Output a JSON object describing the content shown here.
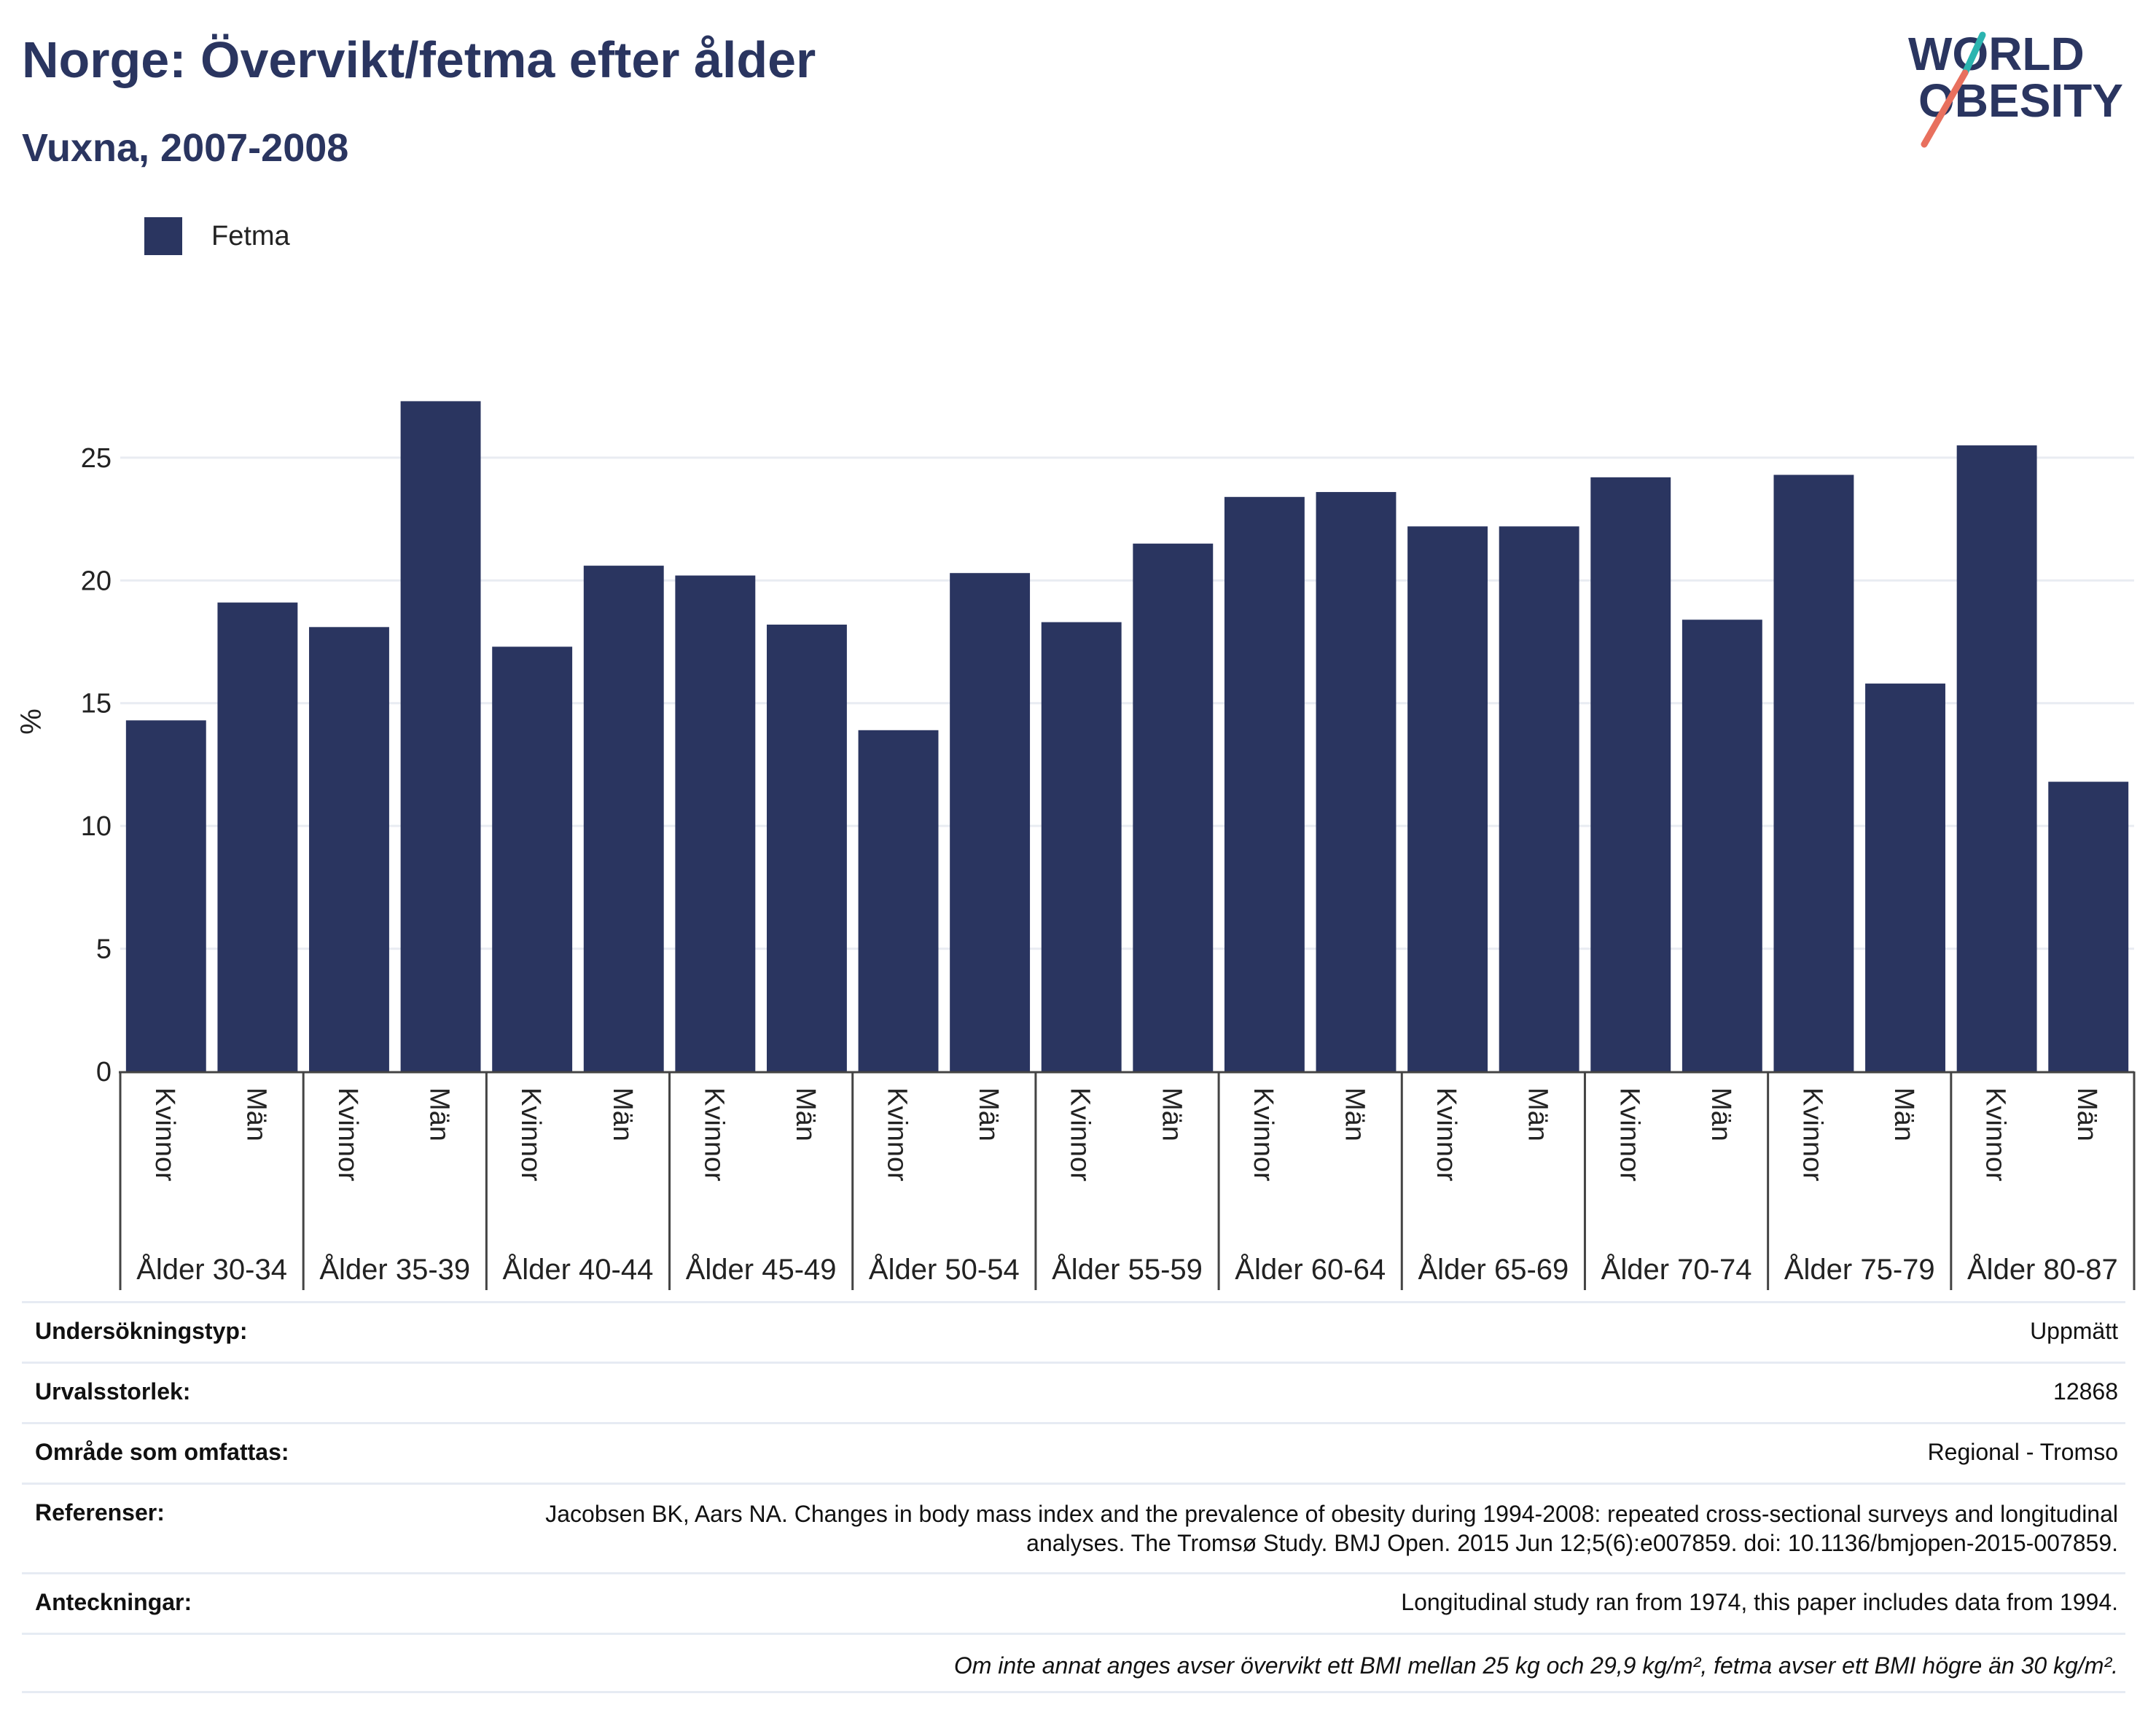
{
  "header": {
    "title": "Norge: Övervikt/fetma efter ålder",
    "subtitle": "Vuxna, 2007-2008"
  },
  "logo": {
    "line1": "WORLD",
    "line2": "OBESITY",
    "accent_colors": [
      "#2bb4b0",
      "#e8705e"
    ]
  },
  "legend": {
    "items": [
      {
        "label": "Fetma",
        "color": "#2a3560"
      }
    ]
  },
  "chart_data": {
    "type": "bar",
    "title": "Norge: Övervikt/fetma efter ålder",
    "subtitle": "Vuxna, 2007-2008",
    "xlabel": "",
    "ylabel": "%",
    "ylim": [
      0,
      28.5
    ],
    "yticks": [
      0,
      5,
      10,
      15,
      20,
      25
    ],
    "grid": true,
    "legend_position": "top-left",
    "groups": [
      "Ålder 30-34",
      "Ålder 35-39",
      "Ålder 40-44",
      "Ålder 45-49",
      "Ålder 50-54",
      "Ålder 55-59",
      "Ålder 60-64",
      "Ålder 65-69",
      "Ålder 70-74",
      "Ålder 75-79",
      "Ålder 80-87"
    ],
    "subcategories": [
      "Kvinnor",
      "Män"
    ],
    "series": [
      {
        "name": "Fetma",
        "color": "#2a3560",
        "values": [
          14.3,
          19.1,
          18.1,
          27.3,
          17.3,
          20.6,
          20.2,
          18.2,
          13.9,
          20.3,
          18.3,
          21.5,
          23.4,
          23.6,
          22.2,
          22.2,
          24.2,
          18.4,
          24.3,
          15.8,
          25.5,
          11.8
        ]
      }
    ]
  },
  "info": {
    "survey_type_label": "Undersökningstyp:",
    "survey_type_value": "Uppmätt",
    "sample_size_label": "Urvalsstorlek:",
    "sample_size_value": "12868",
    "area_label": "Område som omfattas:",
    "area_value": "Regional - Tromso",
    "references_label": "Referenser:",
    "references_value": "Jacobsen BK, Aars NA. Changes in body mass index and the prevalence of obesity during 1994-2008: repeated cross-sectional surveys and longitudinal analyses. The Tromsø Study. BMJ Open. 2015 Jun 12;5(6):e007859. doi: 10.1136/bmjopen-2015-007859.",
    "notes_label": "Anteckningar:",
    "notes_value": "Longitudinal study ran from 1974, this paper includes data from 1994.",
    "footnote": "Om inte annat anges avser övervikt ett BMI mellan 25 kg och 29,9 kg/m², fetma avser ett BMI högre än 30 kg/m²."
  }
}
